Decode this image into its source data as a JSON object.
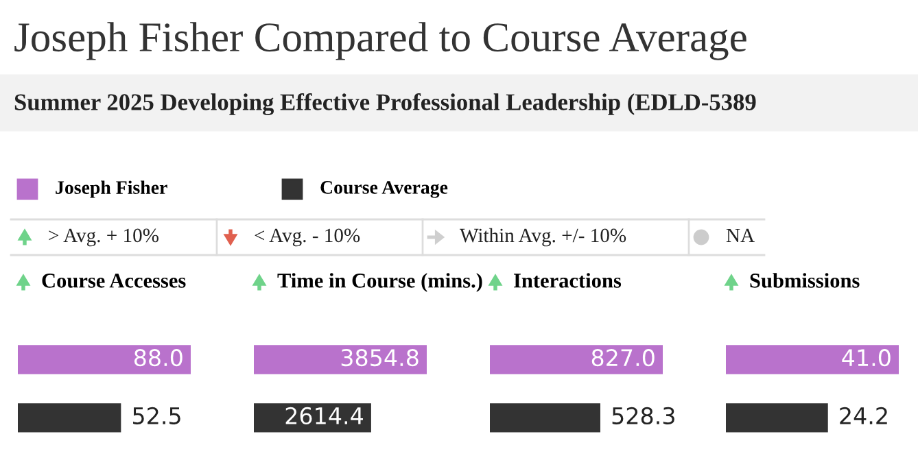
{
  "chart_data": [
    {
      "type": "other",
      "title": "Joseph Fisher Compared to Course Average",
      "subtitle": "Summer 2025 Developing Effective Professional Leadership (EDLD-5389",
      "annotations": [
        "Joseph Fisher",
        "Course Average",
        "> Avg. + 10%",
        "< Avg. - 10%",
        "Within Avg. +/- 10%",
        "NA"
      ]
    },
    {
      "type": "bar",
      "orientation": "horizontal",
      "title": "Course Accesses",
      "categories": [
        null,
        null
      ],
      "colors": [
        "#b972cc",
        "#333333"
      ],
      "values": [
        88.0,
        52.5
      ],
      "value_labels": [
        "88.0",
        "52.5"
      ]
    },
    {
      "type": "bar",
      "orientation": "horizontal",
      "title": "Time in Course (mins.)",
      "categories": [
        null,
        null
      ],
      "colors": [
        "#b972cc",
        "#333333"
      ],
      "values": [
        3854.8,
        2614.4
      ],
      "value_labels": [
        "3854.8",
        "2614.4"
      ]
    },
    {
      "type": "bar",
      "orientation": "horizontal",
      "title": "Interactions",
      "categories": [
        null,
        null
      ],
      "colors": [
        "#b972cc",
        "#333333"
      ],
      "values": [
        827.0,
        528.3
      ],
      "value_labels": [
        "827.0",
        "528.3"
      ]
    },
    {
      "type": "bar",
      "orientation": "horizontal",
      "title": "Submissions",
      "categories": [
        null,
        null
      ],
      "colors": [
        "#b972cc",
        "#333333"
      ],
      "values": [
        41.0,
        24.2
      ],
      "value_labels": [
        "41.0",
        "24.2"
      ]
    }
  ]
}
